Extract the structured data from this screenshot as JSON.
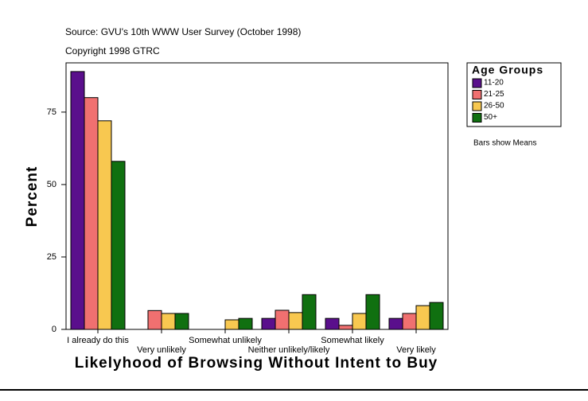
{
  "chart_data": {
    "type": "bar",
    "source": "Source: GVU's 10th WWW User Survey (October 1998)",
    "copyright": "Copyright 1998 GTRC",
    "x_label": "Likelyhood of Browsing Without Intent to Buy",
    "y_label": "Percent",
    "note": "Bars show Means",
    "legend_title": "Age Groups",
    "categories": [
      "I already do this",
      "Very unlikely",
      "Somewhat unlikely",
      "Neither unlikely/likely",
      "Somewhat likely",
      "Very likely"
    ],
    "series": [
      {
        "name": "11-20",
        "color": "#5a0f8c",
        "values": [
          89,
          0,
          0,
          3.8,
          3.8,
          3.8
        ]
      },
      {
        "name": "21-25",
        "color": "#f07070",
        "values": [
          80,
          6.5,
          0,
          6.6,
          1.4,
          5.5
        ]
      },
      {
        "name": "26-50",
        "color": "#f8c850",
        "values": [
          72,
          5.5,
          3.3,
          5.8,
          5.5,
          8.2
        ]
      },
      {
        "name": "50+",
        "color": "#107010",
        "values": [
          58,
          5.5,
          3.8,
          12,
          12,
          9.3
        ]
      }
    ],
    "ylim": [
      0,
      92
    ],
    "yticks": [
      0,
      25,
      50,
      75
    ],
    "grid": false
  }
}
